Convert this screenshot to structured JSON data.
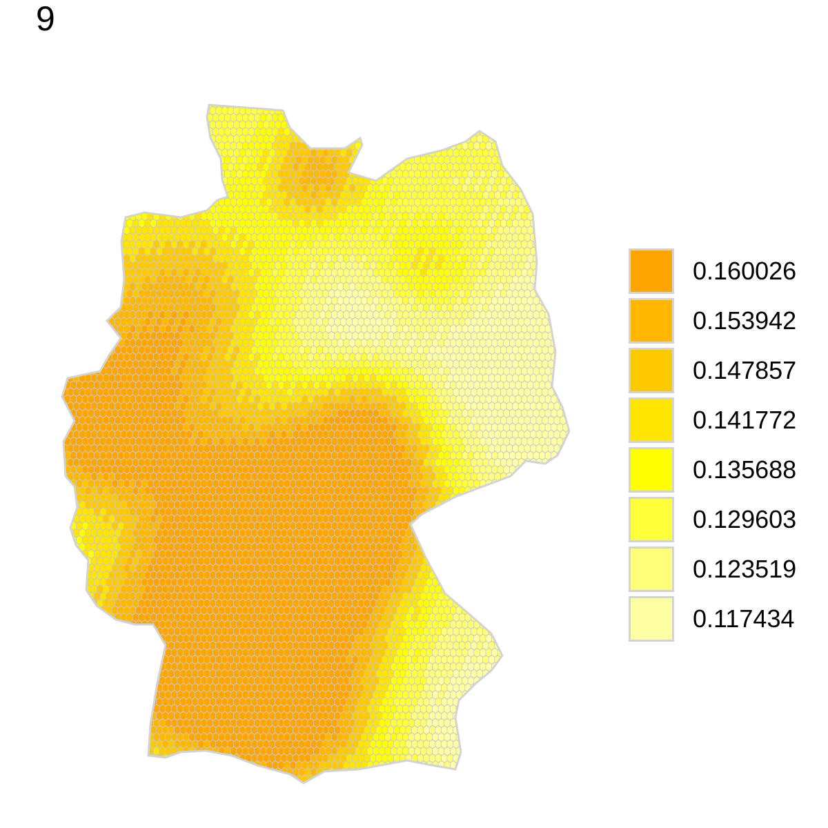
{
  "panel_label": "9",
  "map": {
    "type": "hexagon choropleth",
    "region": "Germany",
    "border_color": "#d3d3d3",
    "hex_cell_stroke": "#c8c8c8",
    "low_value_areas": [
      "far-west",
      "north-coast",
      "upper-middle",
      "east-northeast",
      "bavaria-east",
      "alpine-border"
    ],
    "high_value_areas": [
      "lower-rhine-west",
      "hessen-center",
      "thuringia-franconia-axis",
      "swabian-central",
      "north-central-band"
    ]
  },
  "legend": {
    "items": [
      {
        "label": "0.160026",
        "color": "#FFA500"
      },
      {
        "label": "0.153942",
        "color": "#FFB700"
      },
      {
        "label": "0.147857",
        "color": "#FFC900"
      },
      {
        "label": "0.141772",
        "color": "#FFE500"
      },
      {
        "label": "0.135688",
        "color": "#FFFF00"
      },
      {
        "label": "0.129603",
        "color": "#FFFF3A"
      },
      {
        "label": "0.123519",
        "color": "#FFFF7A"
      },
      {
        "label": "0.117434",
        "color": "#FFFFA3"
      }
    ]
  }
}
